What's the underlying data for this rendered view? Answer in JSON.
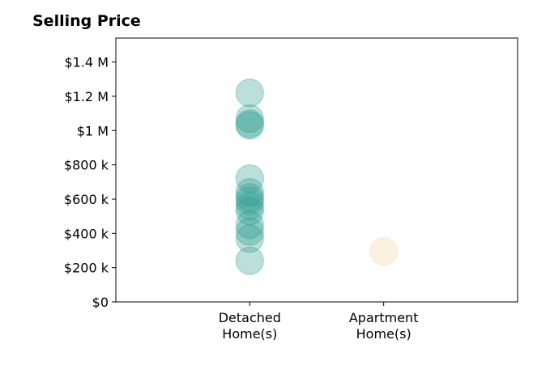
{
  "chart_data": {
    "type": "scatter",
    "title": "Selling Price",
    "xlabel": "",
    "ylabel": "",
    "categories": [
      "Detached\nHome(s)",
      "Apartment\nHome(s)"
    ],
    "ylim": [
      0,
      1540000
    ],
    "yticks": [
      0,
      200000,
      400000,
      600000,
      800000,
      1000000,
      1200000,
      1400000
    ],
    "ytick_labels": [
      "$0",
      "$200 k",
      "$400 k",
      "$600 k",
      "$800 k",
      "$1 M",
      "$1.2 M",
      "$1.4 M"
    ],
    "grid": false,
    "legend": "none",
    "series": [
      {
        "category": "Detached\nHome(s)",
        "color": "#2a9d8f",
        "values": [
          1220000,
          1070000,
          1040000,
          1030000,
          720000,
          640000,
          610000,
          590000,
          560000,
          530000,
          450000,
          410000,
          370000,
          240000
        ]
      },
      {
        "category": "Apartment\nHome(s)",
        "color": "#f4d59a",
        "values": [
          295000
        ]
      }
    ]
  }
}
